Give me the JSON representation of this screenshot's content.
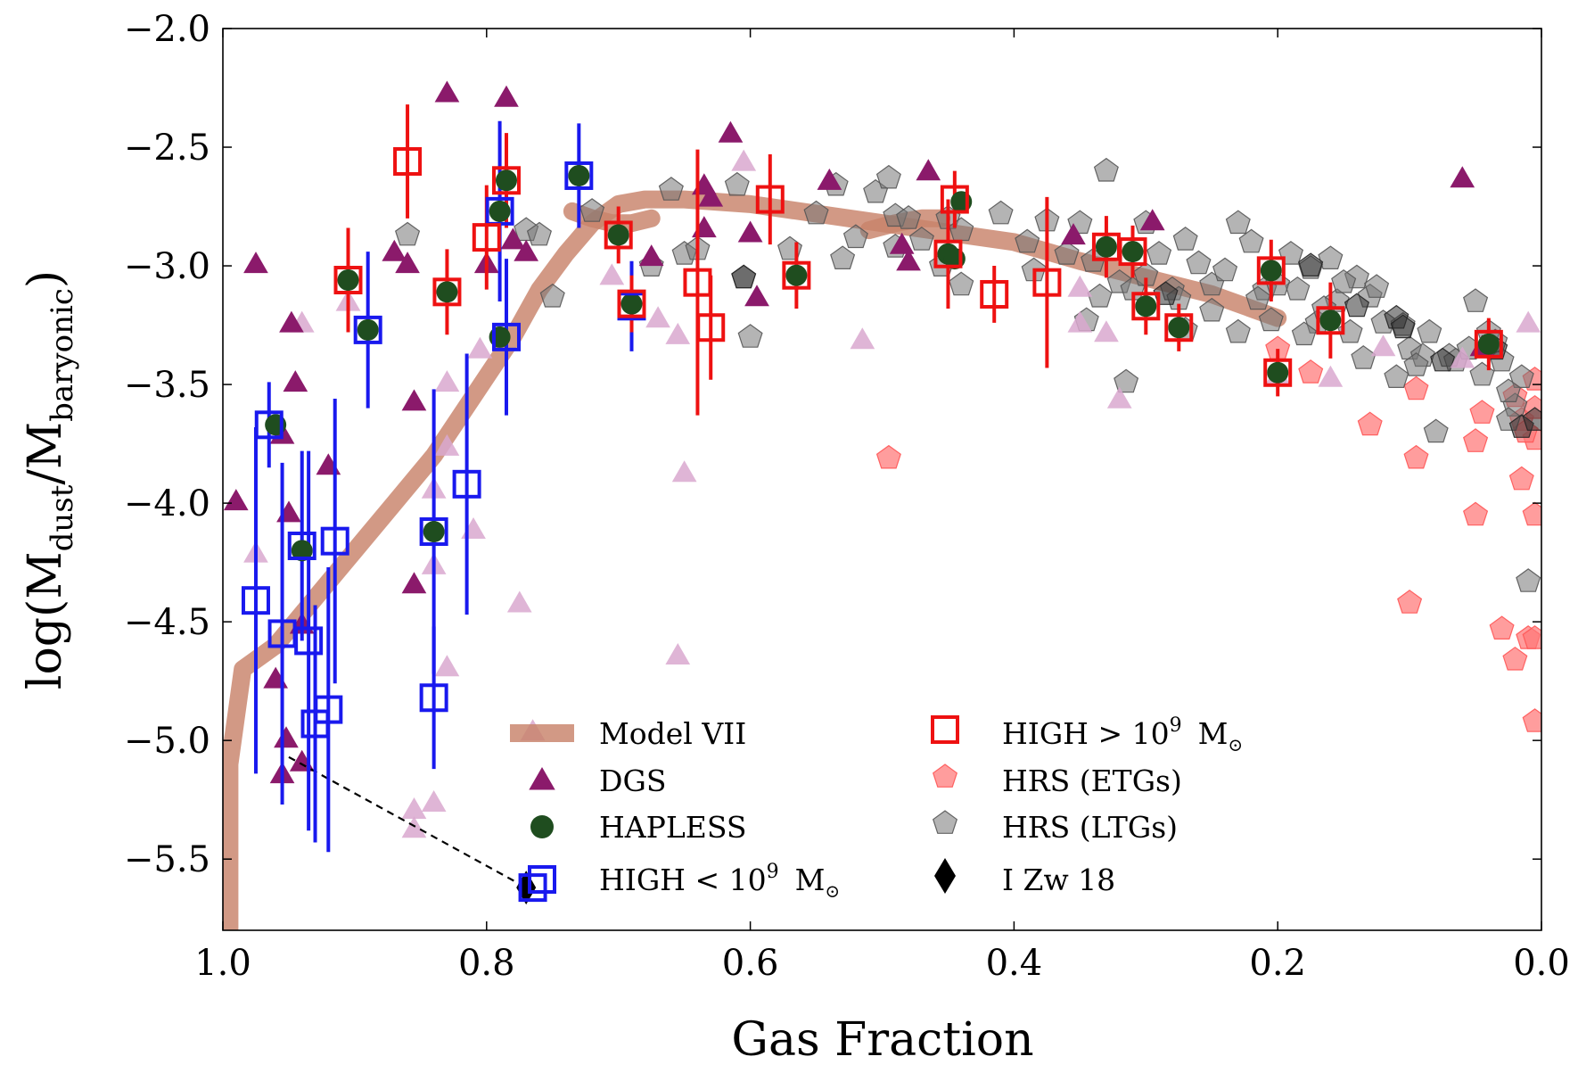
{
  "chart_data": {
    "type": "scatter",
    "xlabel": "Gas Fraction",
    "ylabel_parts": {
      "pre": "log(M",
      "sub1": "dust",
      "mid": "/M",
      "sub2": "baryonic",
      "post": ")"
    },
    "xlim": [
      1.0,
      0.0
    ],
    "ylim": [
      -5.8,
      -2.0
    ],
    "xticks": [
      1.0,
      0.8,
      0.6,
      0.4,
      0.2,
      0.0
    ],
    "xtick_labels": [
      "1.0",
      "0.8",
      "0.6",
      "0.4",
      "0.2",
      "0.0"
    ],
    "yticks": [
      -2.0,
      -2.5,
      -3.0,
      -3.5,
      -4.0,
      -4.5,
      -5.0,
      -5.5
    ],
    "ytick_labels": [
      "−2.0",
      "−2.5",
      "−3.0",
      "−3.5",
      "−4.0",
      "−4.5",
      "−5.0",
      "−5.5"
    ],
    "colors": {
      "model": "#c8826a",
      "dgs": "#8b1a6b",
      "dgs_faint": "#d9a8cf",
      "hapless": "#1f4d1f",
      "high_low": "#1919ee",
      "high_high": "#ee1111",
      "hrs_etg": "#ff7777",
      "hrs_ltg": "#777777",
      "izw18": "#000000"
    },
    "legend": [
      {
        "key": "model",
        "label": "Model VII"
      },
      {
        "key": "dgs",
        "label": "DGS"
      },
      {
        "key": "hapless",
        "label": "HAPLESS"
      },
      {
        "key": "high_low",
        "label": "HIGH < 10",
        "sup": "9",
        "unit": "M",
        "unit_sub": "⊙"
      },
      {
        "key": "high_high",
        "label": "HIGH > 10",
        "sup": "9",
        "unit": "M",
        "unit_sub": "⊙"
      },
      {
        "key": "hrs_etg",
        "label": "HRS (ETGs)"
      },
      {
        "key": "hrs_ltg",
        "label": "HRS (LTGs)"
      },
      {
        "key": "izw18",
        "label": "I Zw 18"
      }
    ],
    "model_vii": {
      "name": "Model VII",
      "points": [
        [
          0.995,
          -5.8
        ],
        [
          0.995,
          -5.1
        ],
        [
          0.985,
          -4.7
        ],
        [
          0.96,
          -4.6
        ],
        [
          0.93,
          -4.4
        ],
        [
          0.9,
          -4.2
        ],
        [
          0.87,
          -4.0
        ],
        [
          0.84,
          -3.8
        ],
        [
          0.81,
          -3.55
        ],
        [
          0.78,
          -3.3
        ],
        [
          0.76,
          -3.1
        ],
        [
          0.74,
          -2.95
        ],
        [
          0.72,
          -2.82
        ],
        [
          0.7,
          -2.74
        ],
        [
          0.68,
          -2.72
        ],
        [
          0.65,
          -2.72
        ],
        [
          0.6,
          -2.74
        ],
        [
          0.55,
          -2.78
        ],
        [
          0.5,
          -2.82
        ],
        [
          0.45,
          -2.86
        ],
        [
          0.4,
          -2.9
        ],
        [
          0.35,
          -2.98
        ],
        [
          0.3,
          -3.05
        ],
        [
          0.25,
          -3.12
        ],
        [
          0.2,
          -3.22
        ]
      ],
      "hook1": [
        [
          0.735,
          -2.77
        ],
        [
          0.72,
          -2.8
        ],
        [
          0.705,
          -2.82
        ],
        [
          0.69,
          -2.82
        ],
        [
          0.675,
          -2.8
        ]
      ],
      "hook2": [
        [
          0.51,
          -2.85
        ],
        [
          0.49,
          -2.82
        ],
        [
          0.47,
          -2.8
        ],
        [
          0.455,
          -2.8
        ]
      ]
    },
    "dgs": {
      "name": "DGS",
      "points": [
        [
          0.99,
          -4.0
        ],
        [
          0.975,
          -3.0
        ],
        [
          0.96,
          -4.75
        ],
        [
          0.955,
          -3.72
        ],
        [
          0.955,
          -5.15
        ],
        [
          0.952,
          -5.0
        ],
        [
          0.95,
          -4.05
        ],
        [
          0.948,
          -3.25
        ],
        [
          0.945,
          -3.5
        ],
        [
          0.94,
          -4.52
        ],
        [
          0.94,
          -5.1
        ],
        [
          0.92,
          -3.85
        ],
        [
          0.87,
          -2.95
        ],
        [
          0.86,
          -3.0
        ],
        [
          0.855,
          -3.58
        ],
        [
          0.855,
          -4.35
        ],
        [
          0.83,
          -2.28
        ],
        [
          0.8,
          -3.0
        ],
        [
          0.785,
          -2.3
        ],
        [
          0.78,
          -2.9
        ],
        [
          0.77,
          -2.95
        ],
        [
          0.675,
          -2.97
        ],
        [
          0.635,
          -2.67
        ],
        [
          0.635,
          -2.85
        ],
        [
          0.63,
          -2.72
        ],
        [
          0.615,
          -2.45
        ],
        [
          0.6,
          -2.87
        ],
        [
          0.595,
          -3.14
        ],
        [
          0.54,
          -2.65
        ],
        [
          0.485,
          -2.92
        ],
        [
          0.48,
          -2.99
        ],
        [
          0.465,
          -2.61
        ],
        [
          0.355,
          -2.88
        ],
        [
          0.295,
          -2.82
        ],
        [
          0.06,
          -2.64
        ],
        [
          0.045,
          -3.35
        ]
      ]
    },
    "dgs_faint": {
      "name": "DGS (faint)",
      "points": [
        [
          0.975,
          -4.22
        ],
        [
          0.94,
          -3.25
        ],
        [
          0.905,
          -3.16
        ],
        [
          0.855,
          -5.3
        ],
        [
          0.855,
          -5.38
        ],
        [
          0.84,
          -3.95
        ],
        [
          0.84,
          -4.27
        ],
        [
          0.84,
          -5.27
        ],
        [
          0.83,
          -3.5
        ],
        [
          0.83,
          -3.77
        ],
        [
          0.83,
          -4.7
        ],
        [
          0.81,
          -4.12
        ],
        [
          0.805,
          -3.36
        ],
        [
          0.775,
          -4.43
        ],
        [
          0.765,
          -4.97
        ],
        [
          0.705,
          -3.05
        ],
        [
          0.67,
          -3.23
        ],
        [
          0.655,
          -3.3
        ],
        [
          0.655,
          -4.65
        ],
        [
          0.65,
          -3.88
        ],
        [
          0.605,
          -2.57
        ],
        [
          0.515,
          -3.32
        ],
        [
          0.35,
          -3.1
        ],
        [
          0.35,
          -3.25
        ],
        [
          0.33,
          -3.29
        ],
        [
          0.32,
          -3.57
        ],
        [
          0.2,
          -3.47
        ],
        [
          0.16,
          -3.48
        ],
        [
          0.12,
          -3.35
        ],
        [
          0.06,
          -3.4
        ],
        [
          0.01,
          -3.25
        ]
      ]
    },
    "hapless": {
      "name": "HAPLESS",
      "points": [
        [
          0.96,
          -3.67
        ],
        [
          0.94,
          -4.2
        ],
        [
          0.905,
          -3.06
        ],
        [
          0.89,
          -3.27
        ],
        [
          0.84,
          -4.12
        ],
        [
          0.83,
          -3.11
        ],
        [
          0.79,
          -2.77
        ],
        [
          0.79,
          -3.3
        ],
        [
          0.785,
          -2.64
        ],
        [
          0.73,
          -2.62
        ],
        [
          0.7,
          -2.87
        ],
        [
          0.69,
          -3.16
        ],
        [
          0.565,
          -3.04
        ],
        [
          0.45,
          -2.95
        ],
        [
          0.44,
          -2.73
        ],
        [
          0.445,
          -2.97
        ],
        [
          0.31,
          -2.94
        ],
        [
          0.33,
          -2.92
        ],
        [
          0.3,
          -3.17
        ],
        [
          0.275,
          -3.26
        ],
        [
          0.205,
          -3.02
        ],
        [
          0.2,
          -3.45
        ],
        [
          0.16,
          -3.23
        ],
        [
          0.04,
          -3.33
        ]
      ]
    },
    "high_low": {
      "name": "HIGH < 10^9 Msun",
      "points": [
        [
          0.965,
          -3.67,
          0.18
        ],
        [
          0.975,
          -4.41,
          0.73
        ],
        [
          0.955,
          -4.55,
          0.72
        ],
        [
          0.94,
          -4.18,
          0.4
        ],
        [
          0.935,
          -4.58,
          0.8
        ],
        [
          0.93,
          -4.93,
          0.5
        ],
        [
          0.92,
          -4.87,
          0.6
        ],
        [
          0.915,
          -4.16,
          0.6
        ],
        [
          0.89,
          -3.27,
          0.33
        ],
        [
          0.84,
          -4.12,
          0.6
        ],
        [
          0.84,
          -4.82,
          0.3
        ],
        [
          0.815,
          -3.92,
          0.55
        ],
        [
          0.79,
          -2.77,
          0.38
        ],
        [
          0.785,
          -3.3,
          0.33
        ],
        [
          0.73,
          -2.62,
          0.22
        ],
        [
          0.69,
          -3.17,
          0.19
        ],
        [
          0.765,
          -5.62,
          0.0
        ]
      ]
    },
    "high_high": {
      "name": "HIGH > 10^9 Msun",
      "points": [
        [
          0.905,
          -3.06,
          0.22
        ],
        [
          0.86,
          -2.56,
          0.24
        ],
        [
          0.83,
          -3.11,
          0.18
        ],
        [
          0.8,
          -2.88,
          0.22
        ],
        [
          0.785,
          -2.64,
          0.2
        ],
        [
          0.7,
          -2.87,
          0.12
        ],
        [
          0.69,
          -3.16,
          0.12
        ],
        [
          0.64,
          -3.07,
          0.56
        ],
        [
          0.63,
          -3.26,
          0.22
        ],
        [
          0.585,
          -2.72,
          0.19
        ],
        [
          0.565,
          -3.04,
          0.14
        ],
        [
          0.45,
          -2.95,
          0.23
        ],
        [
          0.445,
          -2.72,
          0.12
        ],
        [
          0.415,
          -3.12,
          0.12
        ],
        [
          0.375,
          -3.07,
          0.36
        ],
        [
          0.33,
          -2.92,
          0.13
        ],
        [
          0.31,
          -2.94,
          0.11
        ],
        [
          0.3,
          -3.17,
          0.12
        ],
        [
          0.275,
          -3.26,
          0.1
        ],
        [
          0.205,
          -3.02,
          0.13
        ],
        [
          0.2,
          -3.45,
          0.1
        ],
        [
          0.16,
          -3.23,
          0.16
        ],
        [
          0.04,
          -3.33,
          0.11
        ]
      ]
    },
    "hrs_etg": {
      "name": "HRS (ETGs)",
      "points": [
        [
          0.495,
          -3.81
        ],
        [
          0.2,
          -3.35
        ],
        [
          0.175,
          -3.45
        ],
        [
          0.13,
          -3.67
        ],
        [
          0.095,
          -3.52
        ],
        [
          0.095,
          -3.81
        ],
        [
          0.1,
          -4.42
        ],
        [
          0.05,
          -3.74
        ],
        [
          0.05,
          -4.05
        ],
        [
          0.045,
          -3.62
        ],
        [
          0.03,
          -4.53
        ],
        [
          0.02,
          -3.55
        ],
        [
          0.015,
          -3.65
        ],
        [
          0.015,
          -3.9
        ],
        [
          0.02,
          -4.66
        ],
        [
          0.01,
          -4.57
        ],
        [
          0.005,
          -3.48
        ],
        [
          0.005,
          -3.6
        ],
        [
          0.005,
          -3.73
        ],
        [
          0.005,
          -4.05
        ],
        [
          0.005,
          -4.57
        ],
        [
          0.005,
          -4.92
        ],
        [
          0.012,
          -3.7
        ]
      ]
    },
    "hrs_ltg": {
      "name": "HRS (LTGs)",
      "points": [
        [
          0.86,
          -2.87
        ],
        [
          0.77,
          -2.85
        ],
        [
          0.75,
          -3.13
        ],
        [
          0.72,
          -2.77
        ],
        [
          0.675,
          -3.0
        ],
        [
          0.66,
          -2.68
        ],
        [
          0.65,
          -2.95
        ],
        [
          0.64,
          -2.93
        ],
        [
          0.61,
          -2.66
        ],
        [
          0.605,
          -3.05
        ],
        [
          0.6,
          -3.3
        ],
        [
          0.55,
          -2.78
        ],
        [
          0.535,
          -2.66
        ],
        [
          0.52,
          -2.88
        ],
        [
          0.505,
          -2.69
        ],
        [
          0.495,
          -2.63
        ],
        [
          0.49,
          -2.79
        ],
        [
          0.49,
          -2.92
        ],
        [
          0.48,
          -2.8
        ],
        [
          0.47,
          -2.89
        ],
        [
          0.45,
          -2.8
        ],
        [
          0.44,
          -2.85
        ],
        [
          0.41,
          -2.78
        ],
        [
          0.39,
          -2.9
        ],
        [
          0.385,
          -3.02
        ],
        [
          0.375,
          -2.81
        ],
        [
          0.36,
          -2.95
        ],
        [
          0.35,
          -2.82
        ],
        [
          0.345,
          -3.23
        ],
        [
          0.34,
          -2.98
        ],
        [
          0.33,
          -2.6
        ],
        [
          0.32,
          -3.07
        ],
        [
          0.315,
          -3.49
        ],
        [
          0.31,
          -3.1
        ],
        [
          0.3,
          -2.82
        ],
        [
          0.3,
          -3.04
        ],
        [
          0.29,
          -2.95
        ],
        [
          0.28,
          -3.1
        ],
        [
          0.27,
          -2.89
        ],
        [
          0.27,
          -3.27
        ],
        [
          0.26,
          -2.99
        ],
        [
          0.25,
          -3.08
        ],
        [
          0.24,
          -3.02
        ],
        [
          0.23,
          -2.82
        ],
        [
          0.22,
          -2.9
        ],
        [
          0.21,
          -3.1
        ],
        [
          0.205,
          -3.23
        ],
        [
          0.19,
          -2.95
        ],
        [
          0.185,
          -3.1
        ],
        [
          0.175,
          -3.01
        ],
        [
          0.17,
          -3.24
        ],
        [
          0.16,
          -2.97
        ],
        [
          0.155,
          -3.15
        ],
        [
          0.14,
          -3.05
        ],
        [
          0.13,
          -3.13
        ],
        [
          0.12,
          -3.24
        ],
        [
          0.11,
          -3.47
        ],
        [
          0.1,
          -3.35
        ],
        [
          0.09,
          -3.38
        ],
        [
          0.08,
          -3.7
        ],
        [
          0.07,
          -3.38
        ],
        [
          0.05,
          -3.15
        ],
        [
          0.04,
          -3.28
        ],
        [
          0.03,
          -3.4
        ],
        [
          0.02,
          -3.59
        ],
        [
          0.015,
          -3.47
        ],
        [
          0.01,
          -4.33
        ],
        [
          0.76,
          -2.87
        ],
        [
          0.57,
          -2.93
        ],
        [
          0.53,
          -2.97
        ],
        [
          0.455,
          -3.0
        ],
        [
          0.44,
          -3.08
        ],
        [
          0.335,
          -3.13
        ],
        [
          0.275,
          -3.14
        ],
        [
          0.25,
          -3.19
        ],
        [
          0.23,
          -3.28
        ],
        [
          0.215,
          -3.14
        ],
        [
          0.2,
          -3.08
        ],
        [
          0.18,
          -3.29
        ],
        [
          0.165,
          -3.18
        ],
        [
          0.15,
          -3.07
        ],
        [
          0.145,
          -3.28
        ],
        [
          0.135,
          -3.39
        ],
        [
          0.125,
          -3.09
        ],
        [
          0.105,
          -3.25
        ],
        [
          0.095,
          -3.42
        ],
        [
          0.085,
          -3.28
        ],
        [
          0.065,
          -3.4
        ],
        [
          0.055,
          -3.35
        ],
        [
          0.045,
          -3.46
        ],
        [
          0.035,
          -3.32
        ],
        [
          0.025,
          -3.53
        ],
        [
          0.025,
          -3.65
        ]
      ]
    },
    "hrs_ltg_dark": {
      "name": "HRS (LTGs, overlapping)",
      "points": [
        [
          0.605,
          -3.05
        ],
        [
          0.285,
          -3.12
        ],
        [
          0.175,
          -3.0
        ],
        [
          0.14,
          -3.17
        ],
        [
          0.11,
          -3.22
        ],
        [
          0.105,
          -3.26
        ],
        [
          0.075,
          -3.4
        ],
        [
          0.035,
          -3.35
        ],
        [
          0.015,
          -3.68
        ],
        [
          0.005,
          -3.65
        ]
      ]
    },
    "izw18": {
      "name": "I Zw 18",
      "point": [
        0.77,
        -5.62
      ],
      "line_from": [
        0.95,
        -5.07
      ]
    }
  }
}
